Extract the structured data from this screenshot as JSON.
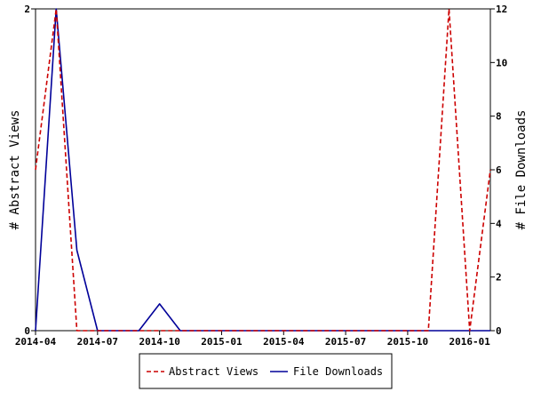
{
  "chart_data": {
    "type": "line",
    "ylabel_left": "# Abstract Views",
    "ylabel_right": "# File Downloads",
    "x_tick_labels": [
      "2014-04",
      "2014-07",
      "2014-10",
      "2015-01",
      "2015-04",
      "2015-07",
      "2015-10",
      "2016-01"
    ],
    "x_range": [
      "2014-04-01",
      "2016-02-01"
    ],
    "left_axis": {
      "ylim": [
        0,
        2
      ],
      "ticks": [
        0,
        2
      ]
    },
    "right_axis": {
      "ylim": [
        0,
        12
      ],
      "ticks": [
        0,
        2,
        4,
        6,
        8,
        10,
        12
      ]
    },
    "grid": false,
    "legend": "bottom",
    "series": [
      {
        "name": "Abstract Views",
        "axis": "left",
        "style": "dashed",
        "color": "#cc0000",
        "x": [
          "2014-04-01",
          "2014-05-01",
          "2014-06-01",
          "2014-07-01",
          "2014-08-01",
          "2014-09-01",
          "2014-10-01",
          "2014-11-01",
          "2014-12-01",
          "2015-01-01",
          "2015-02-01",
          "2015-03-01",
          "2015-04-01",
          "2015-05-01",
          "2015-06-01",
          "2015-07-01",
          "2015-08-01",
          "2015-09-01",
          "2015-10-01",
          "2015-11-01",
          "2015-12-01",
          "2016-01-01",
          "2016-02-01"
        ],
        "values": [
          1,
          2,
          0,
          0,
          0,
          0,
          0,
          0,
          0,
          0,
          0,
          0,
          0,
          0,
          0,
          0,
          0,
          0,
          0,
          0,
          2,
          0,
          1
        ]
      },
      {
        "name": "File Downloads",
        "axis": "right",
        "style": "solid",
        "color": "#000099",
        "x": [
          "2014-04-01",
          "2014-05-01",
          "2014-06-01",
          "2014-07-01",
          "2014-08-01",
          "2014-09-01",
          "2014-10-01",
          "2014-11-01",
          "2014-12-01",
          "2015-01-01",
          "2015-02-01",
          "2015-03-01",
          "2015-04-01",
          "2015-05-01",
          "2015-06-01",
          "2015-07-01",
          "2015-08-01",
          "2015-09-01",
          "2015-10-01",
          "2015-11-01",
          "2015-12-01",
          "2016-01-01",
          "2016-02-01"
        ],
        "values": [
          0,
          12,
          3,
          0,
          0,
          0,
          1,
          0,
          0,
          0,
          0,
          0,
          0,
          0,
          0,
          0,
          0,
          0,
          0,
          0,
          0,
          0,
          0
        ]
      }
    ]
  }
}
